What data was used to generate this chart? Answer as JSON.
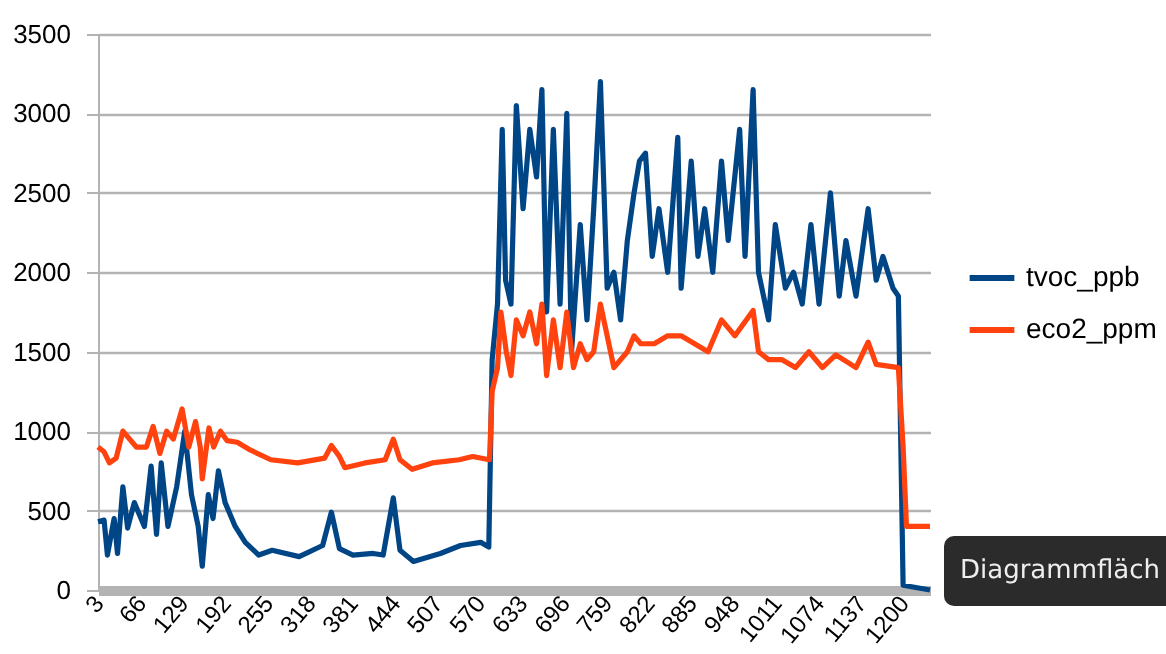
{
  "chart_data": {
    "type": "line",
    "xlim": [
      3,
      1240
    ],
    "xticks": [
      3,
      66,
      129,
      192,
      255,
      318,
      381,
      444,
      507,
      570,
      633,
      696,
      759,
      822,
      885,
      948,
      1011,
      1074,
      1137,
      1200
    ],
    "ylim": [
      0,
      3500
    ],
    "yticks": [
      0,
      500,
      1000,
      1500,
      2000,
      2500,
      3000,
      3500
    ],
    "grid": "y",
    "legend": "right",
    "annotations": [
      "Diagrammfläch"
    ],
    "series": [
      {
        "name": "tvoc_ppb",
        "color": "#004586",
        "x": [
          3,
          12,
          17,
          27,
          32,
          40,
          47,
          57,
          72,
          82,
          90,
          97,
          107,
          120,
          132,
          142,
          152,
          158,
          167,
          174,
          182,
          192,
          207,
          222,
          242,
          262,
          302,
          337,
          350,
          362,
          382,
          412,
          427,
          442,
          452,
          472,
          512,
          542,
          572,
          584,
          589,
          597,
          604,
          609,
          617,
          625,
          635,
          645,
          655,
          663,
          670,
          680,
          690,
          700,
          707,
          720,
          730,
          740,
          750,
          760,
          770,
          780,
          790,
          800,
          808,
          817,
          827,
          837,
          850,
          865,
          870,
          885,
          895,
          905,
          917,
          930,
          940,
          957,
          965,
          977,
          985,
          1000,
          1010,
          1025,
          1037,
          1050,
          1063,
          1075,
          1092,
          1105,
          1115,
          1130,
          1148,
          1160,
          1170,
          1185,
          1193,
          1200,
          1240
        ],
        "values": [
          430,
          440,
          220,
          450,
          230,
          650,
          390,
          550,
          400,
          780,
          350,
          800,
          400,
          650,
          1000,
          600,
          400,
          150,
          600,
          450,
          750,
          550,
          400,
          300,
          220,
          250,
          210,
          280,
          490,
          260,
          220,
          230,
          220,
          580,
          250,
          180,
          230,
          280,
          300,
          270,
          1450,
          1800,
          2900,
          1950,
          1800,
          3050,
          2400,
          2900,
          2600,
          3150,
          1750,
          2900,
          1800,
          3000,
          1500,
          2300,
          1700,
          2400,
          3200,
          1900,
          2000,
          1700,
          2200,
          2500,
          2700,
          2750,
          2100,
          2400,
          2000,
          2850,
          1900,
          2700,
          2100,
          2400,
          2000,
          2700,
          2200,
          2900,
          2100,
          3150,
          2000,
          1700,
          2300,
          1900,
          2000,
          1800,
          2300,
          1800,
          2500,
          1850,
          2200,
          1850,
          2400,
          1950,
          2100,
          1900,
          1850,
          30,
          0
        ]
      },
      {
        "name": "eco2_ppm",
        "color": "#ff420e",
        "x": [
          3,
          12,
          20,
          30,
          40,
          50,
          60,
          75,
          85,
          95,
          105,
          115,
          128,
          138,
          148,
          155,
          158,
          168,
          175,
          185,
          195,
          210,
          230,
          260,
          300,
          340,
          350,
          362,
          370,
          400,
          430,
          442,
          452,
          470,
          500,
          540,
          560,
          585,
          589,
          597,
          602,
          610,
          617,
          625,
          635,
          645,
          655,
          663,
          670,
          680,
          690,
          700,
          710,
          720,
          730,
          740,
          750,
          760,
          770,
          790,
          800,
          810,
          830,
          850,
          870,
          890,
          910,
          930,
          950,
          977,
          985,
          1000,
          1020,
          1040,
          1060,
          1080,
          1100,
          1130,
          1148,
          1160,
          1193,
          1200,
          1205,
          1240
        ],
        "values": [
          900,
          870,
          800,
          830,
          1000,
          950,
          900,
          900,
          1030,
          860,
          1000,
          950,
          1140,
          900,
          1060,
          900,
          700,
          1020,
          900,
          1000,
          940,
          930,
          880,
          820,
          800,
          830,
          910,
          840,
          770,
          800,
          820,
          950,
          820,
          760,
          800,
          820,
          840,
          820,
          1250,
          1400,
          1750,
          1500,
          1350,
          1700,
          1600,
          1750,
          1550,
          1800,
          1350,
          1700,
          1400,
          1750,
          1400,
          1550,
          1450,
          1500,
          1800,
          1600,
          1400,
          1500,
          1600,
          1550,
          1550,
          1600,
          1600,
          1550,
          1500,
          1700,
          1600,
          1760,
          1500,
          1450,
          1450,
          1400,
          1500,
          1400,
          1480,
          1400,
          1560,
          1420,
          1400,
          900,
          400,
          400
        ]
      }
    ]
  }
}
